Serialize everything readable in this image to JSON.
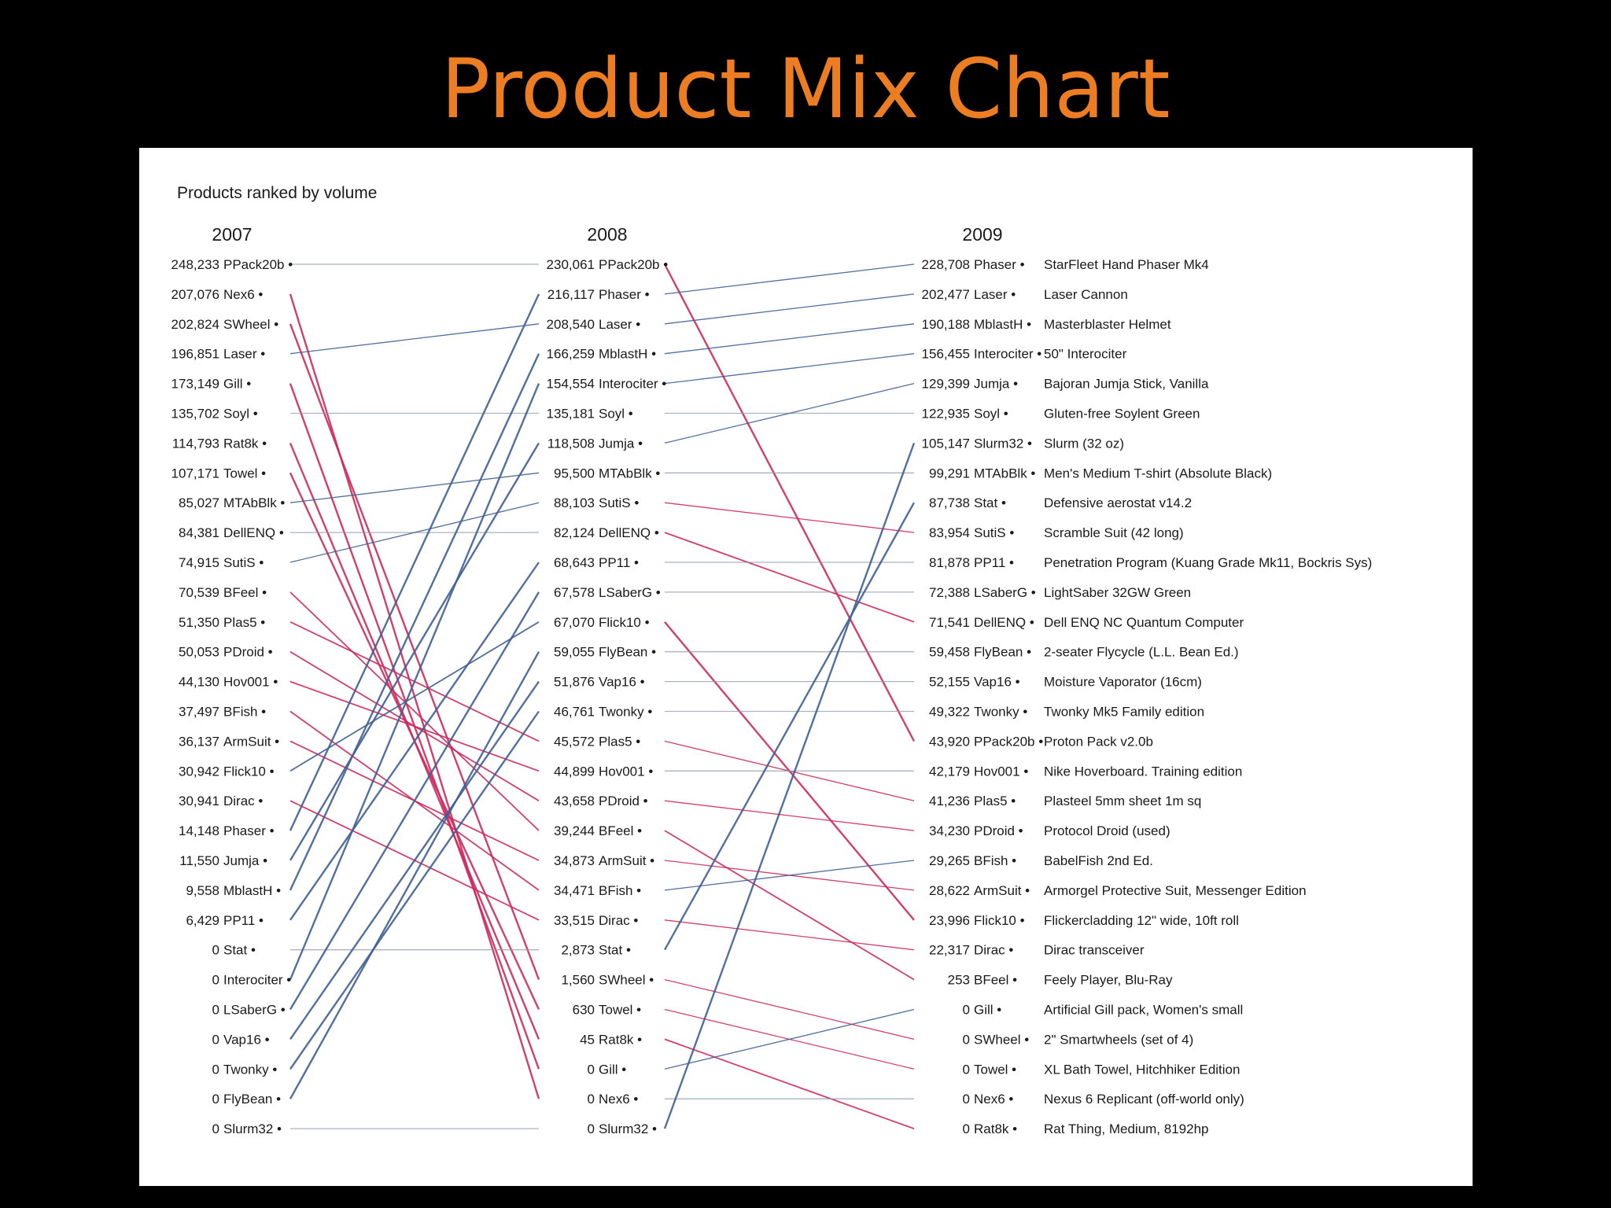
{
  "slide": {
    "title": "Product Mix Chart"
  },
  "colors": {
    "up": "#3F5F94",
    "down": "#CC2A5C",
    "flat": "#8E9AAC",
    "background": "#000000",
    "title": "#ED7D22",
    "panel": "#ffffff"
  },
  "chart_data": {
    "type": "slope",
    "title": "Products ranked by volume",
    "years": [
      "2007",
      "2008",
      "2009"
    ],
    "columns": [
      {
        "year": "2007",
        "entries": [
          {
            "value": "248,233",
            "code": "PPack20b"
          },
          {
            "value": "207,076",
            "code": "Nex6"
          },
          {
            "value": "202,824",
            "code": "SWheel"
          },
          {
            "value": "196,851",
            "code": "Laser"
          },
          {
            "value": "173,149",
            "code": "Gill"
          },
          {
            "value": "135,702",
            "code": "Soyl"
          },
          {
            "value": "114,793",
            "code": "Rat8k"
          },
          {
            "value": "107,171",
            "code": "Towel"
          },
          {
            "value": "85,027",
            "code": "MTAbBlk"
          },
          {
            "value": "84,381",
            "code": "DellENQ"
          },
          {
            "value": "74,915",
            "code": "SutiS"
          },
          {
            "value": "70,539",
            "code": "BFeel"
          },
          {
            "value": "51,350",
            "code": "Plas5"
          },
          {
            "value": "50,053",
            "code": "PDroid"
          },
          {
            "value": "44,130",
            "code": "Hov001"
          },
          {
            "value": "37,497",
            "code": "BFish"
          },
          {
            "value": "36,137",
            "code": "ArmSuit"
          },
          {
            "value": "30,942",
            "code": "Flick10"
          },
          {
            "value": "30,941",
            "code": "Dirac"
          },
          {
            "value": "14,148",
            "code": "Phaser"
          },
          {
            "value": "11,550",
            "code": "Jumja"
          },
          {
            "value": "9,558",
            "code": "MblastH"
          },
          {
            "value": "6,429",
            "code": "PP11"
          },
          {
            "value": "0",
            "code": "Stat"
          },
          {
            "value": "0",
            "code": "Interociter"
          },
          {
            "value": "0",
            "code": "LSaberG"
          },
          {
            "value": "0",
            "code": "Vap16"
          },
          {
            "value": "0",
            "code": "Twonky"
          },
          {
            "value": "0",
            "code": "FlyBean"
          },
          {
            "value": "0",
            "code": "Slurm32"
          }
        ]
      },
      {
        "year": "2008",
        "entries": [
          {
            "value": "230,061",
            "code": "PPack20b"
          },
          {
            "value": "216,117",
            "code": "Phaser"
          },
          {
            "value": "208,540",
            "code": "Laser"
          },
          {
            "value": "166,259",
            "code": "MblastH"
          },
          {
            "value": "154,554",
            "code": "Interociter"
          },
          {
            "value": "135,181",
            "code": "Soyl"
          },
          {
            "value": "118,508",
            "code": "Jumja"
          },
          {
            "value": "95,500",
            "code": "MTAbBlk"
          },
          {
            "value": "88,103",
            "code": "SutiS"
          },
          {
            "value": "82,124",
            "code": "DellENQ"
          },
          {
            "value": "68,643",
            "code": "PP11"
          },
          {
            "value": "67,578",
            "code": "LSaberG"
          },
          {
            "value": "67,070",
            "code": "Flick10"
          },
          {
            "value": "59,055",
            "code": "FlyBean"
          },
          {
            "value": "51,876",
            "code": "Vap16"
          },
          {
            "value": "46,761",
            "code": "Twonky"
          },
          {
            "value": "45,572",
            "code": "Plas5"
          },
          {
            "value": "44,899",
            "code": "Hov001"
          },
          {
            "value": "43,658",
            "code": "PDroid"
          },
          {
            "value": "39,244",
            "code": "BFeel"
          },
          {
            "value": "34,873",
            "code": "ArmSuit"
          },
          {
            "value": "34,471",
            "code": "BFish"
          },
          {
            "value": "33,515",
            "code": "Dirac"
          },
          {
            "value": "2,873",
            "code": "Stat"
          },
          {
            "value": "1,560",
            "code": "SWheel"
          },
          {
            "value": "630",
            "code": "Towel"
          },
          {
            "value": "45",
            "code": "Rat8k"
          },
          {
            "value": "0",
            "code": "Gill"
          },
          {
            "value": "0",
            "code": "Nex6"
          },
          {
            "value": "0",
            "code": "Slurm32"
          }
        ]
      },
      {
        "year": "2009",
        "entries": [
          {
            "value": "228,708",
            "code": "Phaser",
            "desc": "StarFleet Hand Phaser Mk4"
          },
          {
            "value": "202,477",
            "code": "Laser",
            "desc": "Laser Cannon"
          },
          {
            "value": "190,188",
            "code": "MblastH",
            "desc": "Masterblaster Helmet"
          },
          {
            "value": "156,455",
            "code": "Interociter",
            "desc": "50\" Interociter"
          },
          {
            "value": "129,399",
            "code": "Jumja",
            "desc": "Bajoran Jumja Stick, Vanilla"
          },
          {
            "value": "122,935",
            "code": "Soyl",
            "desc": "Gluten-free Soylent Green"
          },
          {
            "value": "105,147",
            "code": "Slurm32",
            "desc": "Slurm (32 oz)"
          },
          {
            "value": "99,291",
            "code": "MTAbBlk",
            "desc": "Men's Medium T-shirt (Absolute Black)"
          },
          {
            "value": "87,738",
            "code": "Stat",
            "desc": "Defensive aerostat v14.2"
          },
          {
            "value": "83,954",
            "code": "SutiS",
            "desc": "Scramble Suit (42 long)"
          },
          {
            "value": "81,878",
            "code": "PP11",
            "desc": "Penetration Program (Kuang Grade Mk11, Bockris Sys)"
          },
          {
            "value": "72,388",
            "code": "LSaberG",
            "desc": "LightSaber 32GW Green"
          },
          {
            "value": "71,541",
            "code": "DellENQ",
            "desc": "Dell ENQ NC Quantum Computer"
          },
          {
            "value": "59,458",
            "code": "FlyBean",
            "desc": "2-seater Flycycle (L.L. Bean Ed.)"
          },
          {
            "value": "52,155",
            "code": "Vap16",
            "desc": "Moisture Vaporator (16cm)"
          },
          {
            "value": "49,322",
            "code": "Twonky",
            "desc": "Twonky Mk5 Family edition"
          },
          {
            "value": "43,920",
            "code": "PPack20b",
            "desc": "Proton Pack v2.0b"
          },
          {
            "value": "42,179",
            "code": "Hov001",
            "desc": "Nike Hoverboard. Training edition"
          },
          {
            "value": "41,236",
            "code": "Plas5",
            "desc": "Plasteel 5mm sheet 1m sq"
          },
          {
            "value": "34,230",
            "code": "PDroid",
            "desc": "Protocol Droid (used)"
          },
          {
            "value": "29,265",
            "code": "BFish",
            "desc": "BabelFish 2nd Ed."
          },
          {
            "value": "28,622",
            "code": "ArmSuit",
            "desc": "Armorgel Protective Suit, Messenger Edition"
          },
          {
            "value": "23,996",
            "code": "Flick10",
            "desc": "Flickercladding 12\" wide, 10ft roll"
          },
          {
            "value": "22,317",
            "code": "Dirac",
            "desc": "Dirac transceiver"
          },
          {
            "value": "253",
            "code": "BFeel",
            "desc": "Feely Player, Blu-Ray"
          },
          {
            "value": "0",
            "code": "Gill",
            "desc": "Artificial Gill pack, Women's small"
          },
          {
            "value": "0",
            "code": "SWheel",
            "desc": "2\" Smartwheels (set of 4)"
          },
          {
            "value": "0",
            "code": "Towel",
            "desc": "XL Bath Towel, Hitchhiker Edition"
          },
          {
            "value": "0",
            "code": "Nex6",
            "desc": "Nexus 6 Replicant (off-world only)"
          },
          {
            "value": "0",
            "code": "Rat8k",
            "desc": "Rat Thing, Medium, 8192hp"
          }
        ]
      }
    ]
  }
}
